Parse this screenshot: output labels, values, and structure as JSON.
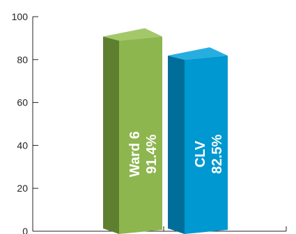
{
  "chart_data": {
    "type": "bar",
    "categories": [
      "Ward 6",
      "CLV"
    ],
    "values": [
      91.4,
      82.5
    ],
    "value_labels": [
      "91.4%",
      "82.5%"
    ],
    "title": "",
    "xlabel": "",
    "ylabel": "",
    "ylim": [
      0,
      100
    ],
    "yticks": [
      "0",
      "20",
      "40",
      "60",
      "80",
      "100"
    ],
    "grid": false,
    "legend": "none",
    "style": "3d",
    "colors": {
      "Ward 6": {
        "front": "#8db64e",
        "side": "#5e7f2e",
        "top": "#a3c86a"
      },
      "CLV": {
        "front": "#0098d0",
        "side": "#006e99",
        "top": "#27aee0"
      },
      "axis": "#231f20"
    }
  }
}
